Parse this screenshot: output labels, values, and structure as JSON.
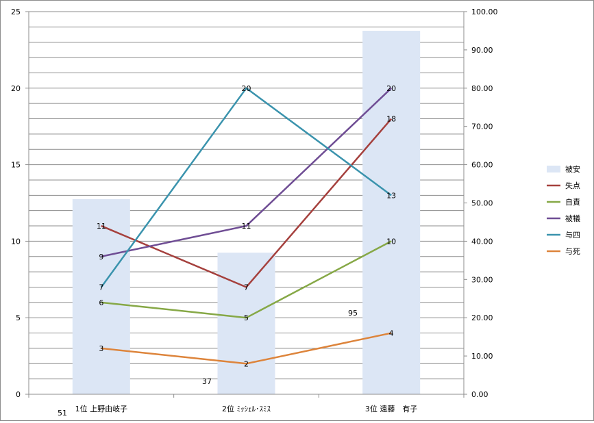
{
  "chart_data": {
    "type": "bar+line",
    "categories": [
      "1位 上野由岐子",
      "2位 ﾐｯｼｪﾙ･ｽﾐｽ",
      "3位 遠藤　有子"
    ],
    "bar_series": {
      "name": "被安",
      "axis": "right",
      "values": [
        51,
        37,
        95
      ],
      "data_labels": [
        "51",
        "37",
        "95"
      ],
      "color": "#dce6f5"
    },
    "line_series": [
      {
        "name": "失点",
        "axis": "left",
        "values": [
          11,
          7,
          18
        ],
        "color": "#a5403d"
      },
      {
        "name": "自責",
        "axis": "left",
        "values": [
          6,
          5,
          10
        ],
        "color": "#86a846"
      },
      {
        "name": "被犠",
        "axis": "left",
        "values": [
          9,
          11,
          20
        ],
        "color": "#6f4d94"
      },
      {
        "name": "与四",
        "axis": "left",
        "values": [
          7,
          20,
          13
        ],
        "color": "#3a93ad"
      },
      {
        "name": "与死",
        "axis": "left",
        "values": [
          3,
          2,
          4
        ],
        "color": "#dd843b"
      }
    ],
    "ylim_left": [
      0,
      25
    ],
    "left_ticks": [
      "0",
      "5",
      "10",
      "15",
      "20",
      "25"
    ],
    "ylim_right": [
      0,
      100
    ],
    "right_ticks": [
      "0.00",
      "10.00",
      "20.00",
      "30.00",
      "40.00",
      "50.00",
      "60.00",
      "70.00",
      "80.00",
      "90.00",
      "100.00"
    ],
    "grid": "horizontal",
    "legend_position": "right"
  }
}
